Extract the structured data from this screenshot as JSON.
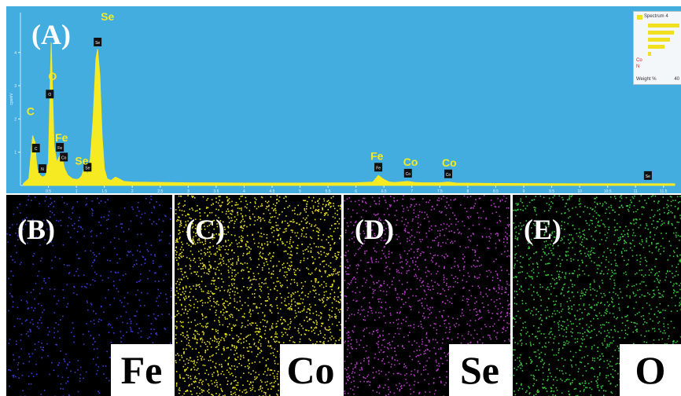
{
  "colors": {
    "spectrum_bg": "#44ade0",
    "trace": "#f6ea22",
    "label": "#f6ea22",
    "panel_letter": "#ffffff"
  },
  "chart_data": [
    {
      "type": "line",
      "panel": "(A)",
      "title": "",
      "xlabel": "",
      "ylabel": "cps/eV",
      "xlim": [
        0,
        11.7
      ],
      "ylim": [
        0,
        5.2
      ],
      "yticks": [
        1,
        2,
        3,
        4
      ],
      "xticks": [
        0.5,
        1,
        1.5,
        2,
        2.5,
        3,
        3.5,
        4,
        4.5,
        5,
        5.5,
        6,
        6.5,
        7,
        7.5,
        8,
        8.5,
        9,
        9.5,
        10,
        10.5,
        11,
        11.5
      ],
      "xtick_labels": [
        "0.5",
        "1",
        "1.5",
        "2",
        "2.5",
        "3",
        "3.5",
        "4",
        "4.5",
        "5",
        "5.5",
        "6",
        "6.5",
        "7",
        "7.5",
        "8",
        "8.5",
        "9",
        "9.5",
        "10",
        "10.5",
        "11",
        "11.5"
      ],
      "series": [
        {
          "x": [
            0.05,
            0.15,
            0.22,
            0.26,
            0.28,
            0.3,
            0.35,
            0.4,
            0.45,
            0.5,
            0.525,
            0.55,
            0.6,
            0.65,
            0.705,
            0.75,
            0.79,
            0.85,
            0.93,
            1.0,
            1.05,
            1.1,
            1.15,
            1.2,
            1.25,
            1.3,
            1.35,
            1.38,
            1.42,
            1.46,
            1.5,
            1.55,
            1.62,
            1.7,
            1.76,
            1.85,
            2.0,
            3.0,
            4.0,
            5.0,
            6.0,
            6.3,
            6.4,
            6.5,
            6.6,
            6.7,
            6.93,
            7.05,
            7.2,
            7.5,
            7.65,
            7.8,
            8.5,
            10.0,
            11.2,
            11.7
          ],
          "y": [
            0.05,
            0.2,
            1.5,
            1.3,
            0.8,
            0.5,
            0.3,
            0.25,
            0.3,
            0.7,
            2.5,
            4.3,
            1.2,
            0.7,
            0.9,
            0.8,
            0.5,
            0.3,
            0.2,
            0.18,
            0.2,
            0.3,
            0.6,
            0.3,
            0.8,
            2.0,
            3.8,
            4.1,
            3.3,
            1.5,
            0.5,
            0.2,
            0.15,
            0.25,
            0.2,
            0.12,
            0.1,
            0.08,
            0.07,
            0.07,
            0.08,
            0.1,
            0.3,
            0.18,
            0.1,
            0.09,
            0.12,
            0.09,
            0.08,
            0.08,
            0.1,
            0.07,
            0.06,
            0.05,
            0.05,
            0.05
          ]
        }
      ],
      "peak_labels": [
        {
          "text": "C",
          "x": 0.277,
          "y": 1.5
        },
        {
          "text": "O",
          "x": 0.525,
          "y": 2.5
        },
        {
          "text": "Fe",
          "x": 0.705,
          "y": 0.9
        },
        {
          "text": "Se",
          "x": 1.38,
          "y": 4.1
        },
        {
          "text": "Se",
          "x": 1.2,
          "y": 0.3
        },
        {
          "text": "Fe",
          "x": 6.4,
          "y": 0.3
        },
        {
          "text": "Co",
          "x": 6.93,
          "y": 0.12
        },
        {
          "text": "Co",
          "x": 7.65,
          "y": 0.1
        }
      ],
      "line_markers": [
        {
          "code": "C",
          "x": 0.277
        },
        {
          "code": "N",
          "x": 0.392
        },
        {
          "code": "O",
          "x": 0.525
        },
        {
          "code": "Fe",
          "x": 0.705
        },
        {
          "code": "Co",
          "x": 0.776
        },
        {
          "code": "Se",
          "x": 1.2
        },
        {
          "code": "Se",
          "x": 1.38
        },
        {
          "code": "Fe",
          "x": 6.4
        },
        {
          "code": "Co",
          "x": 6.93
        },
        {
          "code": "Co",
          "x": 7.65
        },
        {
          "code": "Se",
          "x": 11.22
        }
      ]
    },
    {
      "type": "bar",
      "title": "Spectrum 4",
      "categories": [
        "",
        "",
        "",
        "",
        "Co",
        "N"
      ],
      "values": [
        54,
        44,
        38,
        28,
        5,
        0
      ],
      "xlabel": "Weight %",
      "xticks": [
        "40"
      ],
      "legend": "top-left"
    }
  ],
  "maps": [
    {
      "panel": "(B)",
      "element": "Fe",
      "color": "#3e3cd8"
    },
    {
      "panel": "(C)",
      "element": "Co",
      "color": "#e3dc22"
    },
    {
      "panel": "(D)",
      "element": "Se",
      "color": "#b63cc8"
    },
    {
      "panel": "(E)",
      "element": "O",
      "color": "#3ac83e"
    }
  ],
  "inset": {
    "legend_label": "Spectrum 4",
    "co_label": "Co",
    "n_label": "N",
    "foot_label": "Weight %",
    "foot_tick": "40"
  }
}
